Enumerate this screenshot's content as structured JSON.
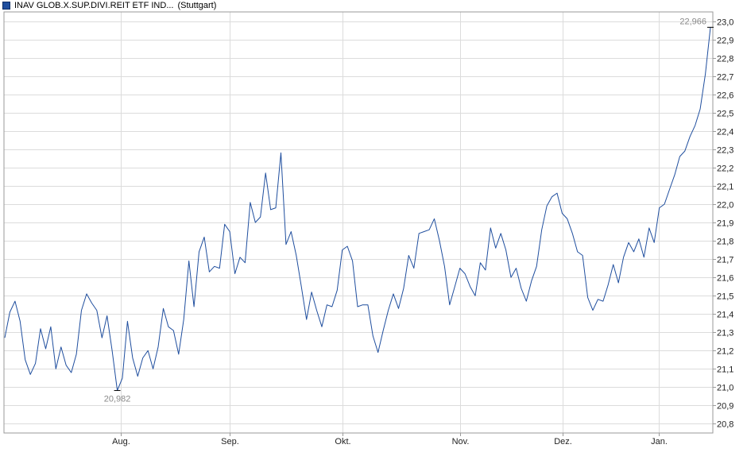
{
  "legend": {
    "name": "INAV GLOB.X.SUP.DIVI.REIT ETF IND...",
    "exchange": "(Stuttgart)",
    "color": "#1f4e9e"
  },
  "chart_data": {
    "type": "line",
    "series": [
      {
        "name": "INAV GLOB.X.SUP.DIVI.REIT ETF IND...",
        "color": "#1f4e9e",
        "values": [
          21.27,
          21.41,
          21.47,
          21.36,
          21.15,
          21.07,
          21.13,
          21.32,
          21.21,
          21.33,
          21.1,
          21.22,
          21.12,
          21.08,
          21.18,
          21.42,
          21.51,
          21.46,
          21.42,
          21.27,
          21.39,
          21.2,
          20.982,
          21.05,
          21.36,
          21.16,
          21.06,
          21.16,
          21.2,
          21.1,
          21.22,
          21.43,
          21.33,
          21.31,
          21.18,
          21.37,
          21.69,
          21.44,
          21.74,
          21.82,
          21.63,
          21.66,
          21.65,
          21.89,
          21.85,
          21.62,
          21.71,
          21.68,
          22.01,
          21.9,
          21.93,
          22.17,
          21.97,
          21.98,
          22.28,
          21.78,
          21.85,
          21.72,
          21.55,
          21.37,
          21.52,
          21.42,
          21.33,
          21.45,
          21.44,
          21.53,
          21.75,
          21.77,
          21.69,
          21.44,
          21.45,
          21.45,
          21.28,
          21.19,
          21.31,
          21.42,
          21.51,
          21.43,
          21.54,
          21.72,
          21.65,
          21.84,
          21.85,
          21.86,
          21.92,
          21.8,
          21.66,
          21.45,
          21.55,
          21.65,
          21.62,
          21.55,
          21.5,
          21.68,
          21.64,
          21.87,
          21.76,
          21.84,
          21.75,
          21.6,
          21.65,
          21.54,
          21.47,
          21.58,
          21.66,
          21.86,
          21.99,
          22.04,
          22.06,
          21.95,
          21.92,
          21.84,
          21.74,
          21.72,
          21.49,
          21.42,
          21.48,
          21.47,
          21.56,
          21.67,
          21.57,
          21.71,
          21.79,
          21.74,
          21.81,
          21.71,
          21.87,
          21.79,
          21.98,
          22.0,
          22.08,
          22.16,
          22.26,
          22.29,
          22.37,
          22.43,
          22.52,
          22.71,
          22.966
        ]
      }
    ],
    "x_tick_labels": [
      "Aug.",
      "Sep.",
      "Okt.",
      "Nov.",
      "Dez.",
      "Jan."
    ],
    "y_ticks": [
      "20,8",
      "20,9",
      "21,0",
      "21,1",
      "21,2",
      "21,3",
      "21,4",
      "21,5",
      "21,6",
      "21,7",
      "21,8",
      "21,9",
      "22,0",
      "22,1",
      "22,2",
      "22,3",
      "22,4",
      "22,5",
      "22,6",
      "22,7",
      "22,8",
      "22,9",
      "23,0"
    ],
    "ylim": [
      20.75,
      23.05
    ],
    "y_axis_position": "right",
    "grid": true,
    "annotations": {
      "min": {
        "label": "20,982",
        "value": 20.982
      },
      "max": {
        "label": "22,966",
        "value": 22.966
      }
    }
  }
}
